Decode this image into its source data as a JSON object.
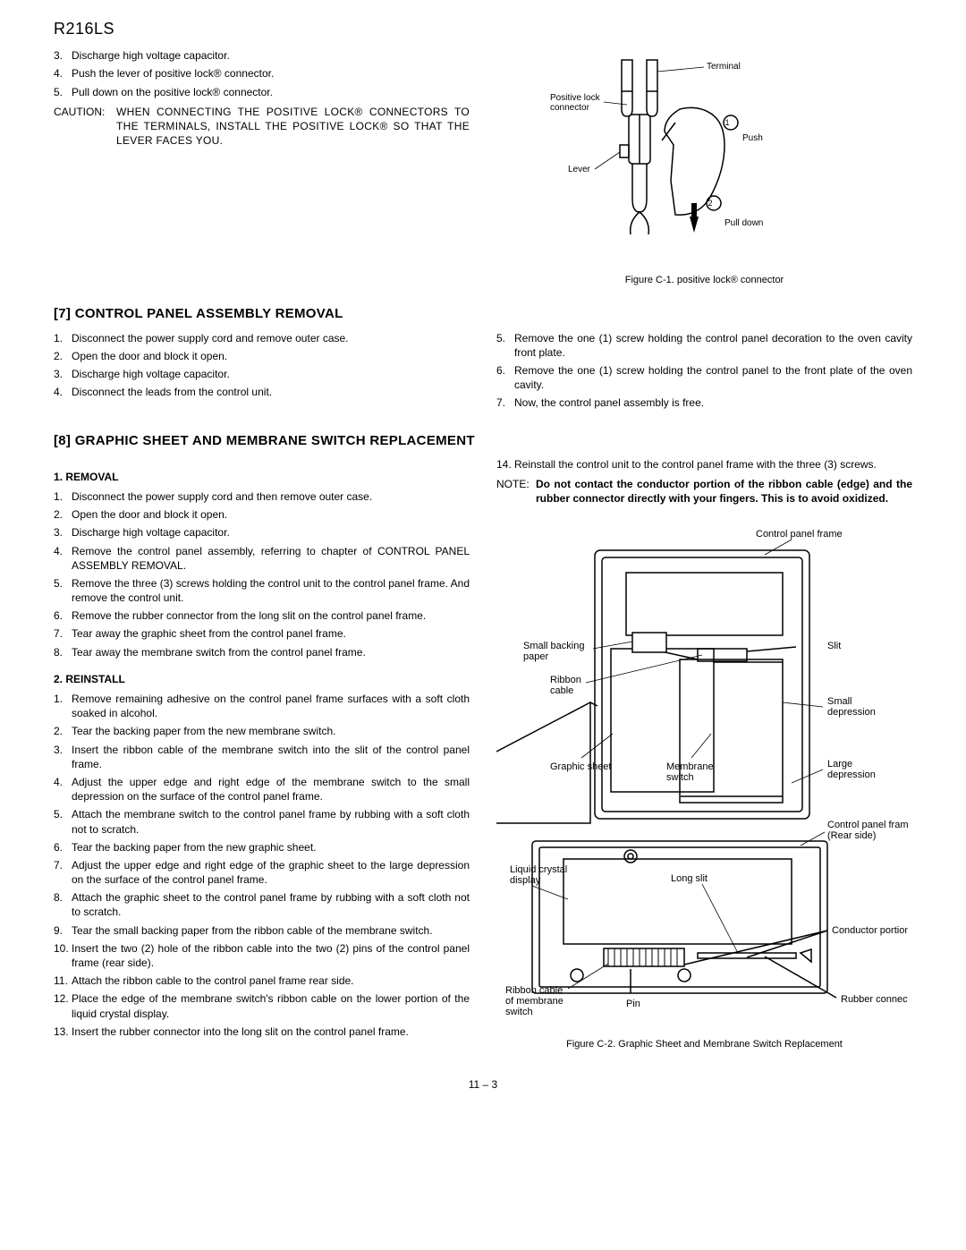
{
  "model": "R216LS",
  "top_steps": [
    "Discharge high voltage capacitor.",
    "Push the lever of positive lock® connector.",
    "Pull down on the positive lock® connector."
  ],
  "top_start_num": 3,
  "caution_label": "CAUTION:",
  "caution_text": "WHEN CONNECTING THE POSITIVE LOCK® CONNECTORS TO THE TERMINALS, INSTALL THE POSITIVE LOCK® SO THAT THE LEVER FACES YOU.",
  "fig_c1_caption": "Figure C-1.  positive lock® connector",
  "fig_c1_labels": {
    "terminal": "Terminal",
    "positive_lock": "Positive lock \nconnector",
    "lever": "Lever",
    "push": "Push",
    "pulldown": "Pull down",
    "n1": "1",
    "n2": "2"
  },
  "section7_title": "[7] CONTROL PANEL ASSEMBLY REMOVAL",
  "section7_left": [
    "Disconnect the power supply cord and remove outer case.",
    "Open the door and block it open.",
    "Discharge high voltage capacitor.",
    "Disconnect the leads from the control unit."
  ],
  "section7_right": [
    "Remove the one (1) screw holding the control panel decoration to the oven cavity front plate.",
    "Remove the one (1) screw holding the control panel to the front plate of the oven cavity.",
    "Now, the control panel assembly is free."
  ],
  "section7_right_start": 5,
  "section8_title": "[8] GRAPHIC SHEET AND MEMBRANE SWITCH REPLACEMENT",
  "removal_title": "1. REMOVAL",
  "removal_steps": [
    "Disconnect the power supply cord and then remove outer case.",
    "Open the door and block it open.",
    "Discharge high voltage capacitor.",
    "Remove the control panel assembly, referring to chapter of CONTROL PANEL ASSEMBLY REMOVAL.",
    "Remove the three (3) screws holding the control unit to the control panel frame. And remove the control unit.",
    "Remove the rubber connector from the long slit on the control panel frame.",
    "Tear away the graphic sheet from the control panel frame.",
    "Tear away the membrane switch from the control panel frame."
  ],
  "reinstall_title": "2. REINSTALL",
  "reinstall_steps": [
    "Remove remaining adhesive on the control panel frame surfaces with a soft cloth soaked in alcohol.",
    "Tear the backing paper from the new membrane switch.",
    "Insert the ribbon cable of the membrane switch into the slit of the control panel frame.",
    "Adjust the upper edge and right edge of the membrane switch to the small depression on the surface of the control panel frame.",
    "Attach the membrane switch to the control panel frame by rubbing with a soft cloth not to scratch.",
    "Tear the backing paper from the new graphic sheet.",
    "Adjust the upper edge and right edge of the graphic sheet to the large depression on the surface of the control panel frame.",
    "Attach the graphic sheet to the control panel frame by rubbing with a soft cloth not to scratch.",
    "Tear the small backing paper from the ribbon cable of the membrane switch.",
    "Insert the two (2) hole of the ribbon cable into the two (2) pins of the control panel frame (rear side).",
    "Attach the ribbon cable to the control panel frame rear side.",
    "Place the edge of the membrane switch's ribbon cable on the lower portion of the liquid crystal display.",
    "Insert the rubber connector into the long slit on the control panel frame."
  ],
  "right_col_continue": [
    "Reinstall the control unit to the control panel frame with the three (3) screws."
  ],
  "right_col_continue_start": 14,
  "note_label": "NOTE:",
  "note_text": "Do not contact the conductor portion of the ribbon cable (edge) and the rubber connector directly with your fingers. This is to avoid oxidized.",
  "fig_c2_caption": "Figure C-2. Graphic Sheet and Membrane Switch Replacement",
  "fig_c2_labels": {
    "cpf": "Control panel frame",
    "sbp": "Small backing\npaper",
    "ribbon": "Ribbon\ncable",
    "slit": "Slit",
    "small_dep": "Small\ndepression",
    "large_dep": "Large\ndepression",
    "graphic": "Graphic sheet",
    "membrane": "Membrane\nswitch",
    "cpf_rear": "Control panel frame\n(Rear side)",
    "lcd": "Liquid crystal\ndisplay",
    "long_slit": "Long slit",
    "conductor": "Conductor portions",
    "rcms": "Ribbon cable\nof membrane\nswitch",
    "pin": "Pin",
    "rubber": "Rubber connector"
  },
  "page_number": "11 – 3"
}
